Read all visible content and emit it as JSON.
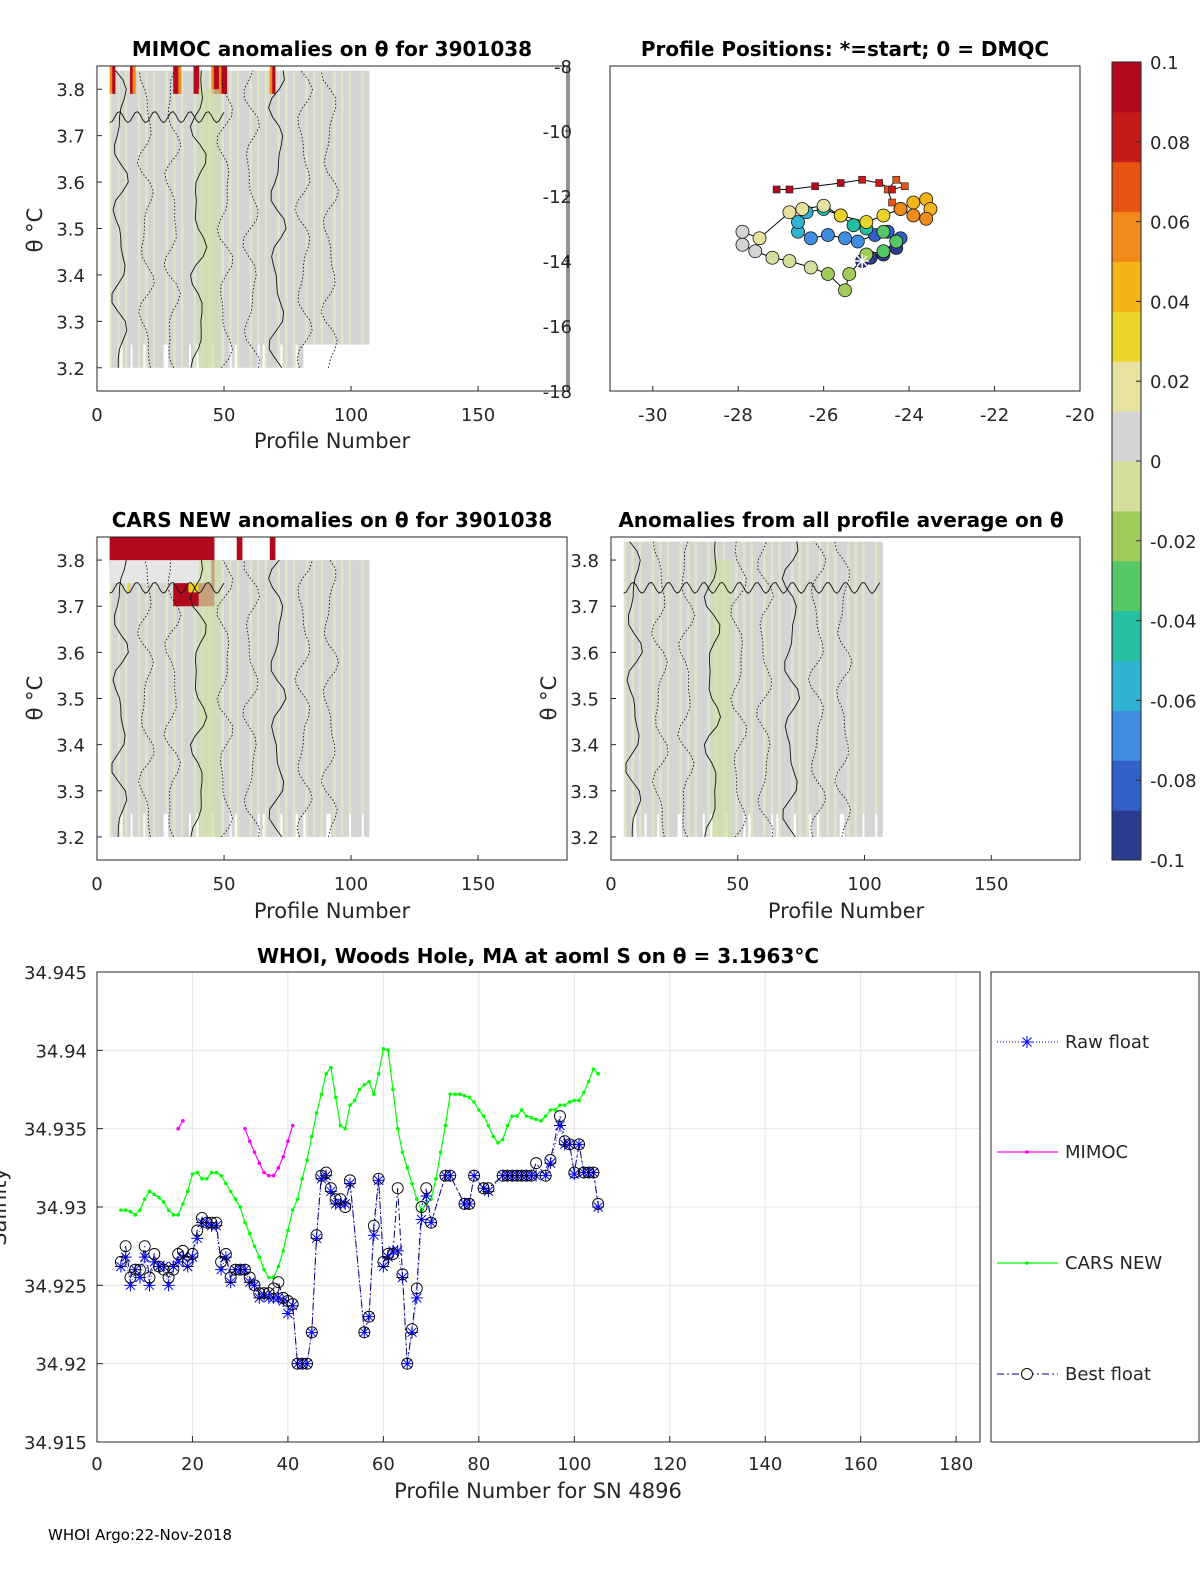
{
  "footer": "WHOI Argo:22-Nov-2018",
  "colorbar": {
    "min": -0.1,
    "max": 0.1,
    "tick_labels": [
      "0.1",
      "0.08",
      "0.06",
      "0.04",
      "0.02",
      "0",
      "-0.02",
      "-0.04",
      "-0.06",
      "-0.08",
      "-0.1"
    ],
    "colors": [
      "#2b3c8e",
      "#3260c9",
      "#3f8de0",
      "#2fb3d1",
      "#25bfa2",
      "#55c765",
      "#a1cc5a",
      "#d5de9a",
      "#d4d4d4",
      "#e8e2a0",
      "#e9d52a",
      "#f4b418",
      "#f08a1c",
      "#e65414",
      "#c61a1a",
      "#b3091d"
    ]
  },
  "chart_data": [
    {
      "id": "mimoc_anomalies",
      "type": "heatmap",
      "title": "MIMOC anomalies on θ  for 3901038",
      "xlabel": "Profile Number",
      "ylabel": "θ °C",
      "xlim": [
        0,
        185
      ],
      "ylim": [
        3.15,
        3.85
      ],
      "x_ticks": [
        "0",
        "50",
        "100",
        "150"
      ],
      "y_ticks": [
        "3.2",
        "3.3",
        "3.4",
        "3.5",
        "3.6",
        "3.7",
        "3.8"
      ],
      "profile_range": [
        5,
        106
      ],
      "theta_range": [
        3.2,
        3.84
      ],
      "dominant_anomaly": 0.0,
      "high_anomaly_profiles": [
        5,
        6,
        13,
        14,
        30,
        31,
        32,
        38,
        39,
        45,
        46,
        47,
        48,
        49,
        50,
        68,
        69
      ]
    },
    {
      "id": "profile_positions",
      "type": "scatter",
      "title": "Profile Positions: *=start; 0 = DMQC",
      "xlabel": "",
      "ylabel": "",
      "xlim": [
        -31,
        -20
      ],
      "ylim": [
        -18,
        -8
      ],
      "x_ticks": [
        "-30",
        "-28",
        "-26",
        "-24",
        "-22",
        "-20"
      ],
      "y_ticks": [
        "-8",
        "-10",
        "-12",
        "-14",
        "-16",
        "-18"
      ],
      "start": [
        -25.1,
        -14.0
      ],
      "track": [
        [
          -25.1,
          -14.0
        ],
        [
          -24.9,
          -13.9
        ],
        [
          -24.6,
          -13.8
        ],
        [
          -24.3,
          -13.6
        ],
        [
          -24.2,
          -13.3
        ],
        [
          -24.5,
          -13.1
        ],
        [
          -24.8,
          -13.2
        ],
        [
          -25.2,
          -13.4
        ],
        [
          -25.5,
          -13.3
        ],
        [
          -25.9,
          -13.2
        ],
        [
          -26.3,
          -13.3
        ],
        [
          -26.6,
          -13.1
        ],
        [
          -26.6,
          -12.8
        ],
        [
          -26.4,
          -12.5
        ],
        [
          -26.0,
          -12.4
        ],
        [
          -25.6,
          -12.6
        ],
        [
          -25.3,
          -12.9
        ],
        [
          -25.0,
          -13.0
        ],
        [
          -24.6,
          -13.1
        ],
        [
          -24.3,
          -13.4
        ],
        [
          -24.6,
          -13.7
        ],
        [
          -25.0,
          -13.8
        ],
        [
          -25.4,
          -14.4
        ],
        [
          -25.5,
          -14.9
        ],
        [
          -25.9,
          -14.4
        ],
        [
          -26.3,
          -14.2
        ],
        [
          -26.8,
          -14.0
        ],
        [
          -27.2,
          -13.9
        ],
        [
          -27.6,
          -13.7
        ],
        [
          -27.9,
          -13.5
        ],
        [
          -27.9,
          -13.1
        ],
        [
          -27.5,
          -13.3
        ],
        [
          -26.8,
          -12.5
        ],
        [
          -26.5,
          -12.4
        ],
        [
          -26.0,
          -12.3
        ],
        [
          -25.6,
          -12.6
        ],
        [
          -25.0,
          -12.8
        ],
        [
          -24.6,
          -12.6
        ],
        [
          -24.2,
          -12.4
        ],
        [
          -23.9,
          -12.2
        ],
        [
          -23.6,
          -12.1
        ],
        [
          -23.5,
          -12.4
        ],
        [
          -23.6,
          -12.7
        ],
        [
          -23.9,
          -12.6
        ],
        [
          -24.2,
          -12.4
        ],
        [
          -24.4,
          -12.2
        ],
        [
          -24.5,
          -11.8
        ],
        [
          -24.3,
          -11.5
        ],
        [
          -24.1,
          -11.7
        ],
        [
          -24.4,
          -11.8
        ],
        [
          -24.7,
          -11.6
        ],
        [
          -25.1,
          -11.5
        ],
        [
          -25.6,
          -11.6
        ],
        [
          -26.2,
          -11.7
        ],
        [
          -26.8,
          -11.8
        ],
        [
          -27.1,
          -11.8
        ]
      ]
    },
    {
      "id": "cars_anomalies",
      "type": "heatmap",
      "title": "CARS NEW anomalies on θ for 3901038",
      "xlabel": "Profile Number",
      "ylabel": "θ °C",
      "xlim": [
        0,
        185
      ],
      "ylim": [
        3.15,
        3.85
      ],
      "x_ticks": [
        "0",
        "50",
        "100",
        "150"
      ],
      "y_ticks": [
        "3.2",
        "3.3",
        "3.4",
        "3.5",
        "3.6",
        "3.7",
        "3.8"
      ],
      "profile_range": [
        5,
        106
      ],
      "theta_range": [
        3.2,
        3.8
      ],
      "dominant_anomaly": 0.0,
      "high_anomaly_profiles": [
        5,
        6,
        7,
        8,
        9,
        10,
        11,
        12,
        13,
        14,
        15,
        16,
        17,
        18,
        19,
        20,
        21,
        22,
        23,
        24,
        25,
        26,
        27,
        28,
        29,
        30,
        31,
        32,
        33,
        34,
        35,
        36,
        37,
        38,
        39,
        40,
        41,
        42,
        43,
        44,
        45,
        55,
        56,
        68,
        69
      ]
    },
    {
      "id": "all_profile_average_anomalies",
      "type": "heatmap",
      "title": "Anomalies from all profile average on θ",
      "xlabel": "Profile Number",
      "ylabel": "θ °C",
      "xlim": [
        0,
        185
      ],
      "ylim": [
        3.15,
        3.85
      ],
      "x_ticks": [
        "0",
        "50",
        "100",
        "150"
      ],
      "y_ticks": [
        "3.2",
        "3.3",
        "3.4",
        "3.5",
        "3.6",
        "3.7",
        "3.8"
      ],
      "profile_range": [
        5,
        106
      ],
      "theta_range": [
        3.2,
        3.84
      ],
      "dominant_anomaly": 0.0
    },
    {
      "id": "salinity_timeseries",
      "type": "line",
      "title": "WHOI, Woods Hole, MA at aoml S on θ = 3.1963°C",
      "xlabel": "Profile Number for SN 4896",
      "ylabel": "Salinity",
      "xlim": [
        0,
        185
      ],
      "ylim": [
        34.915,
        34.945
      ],
      "x_ticks": [
        "0",
        "20",
        "40",
        "60",
        "80",
        "100",
        "120",
        "140",
        "160",
        "180"
      ],
      "y_ticks": [
        "34.915",
        "34.92",
        "34.925",
        "34.93",
        "34.935",
        "34.94",
        "34.945"
      ],
      "legend": [
        "Raw float",
        "MIMOC",
        "CARS NEW",
        "Best float"
      ],
      "series": [
        {
          "name": "CARS NEW",
          "color": "#00ff00",
          "x": [
            5,
            6,
            7,
            8,
            9,
            10,
            11,
            12,
            13,
            14,
            15,
            16,
            17,
            18,
            19,
            20,
            21,
            22,
            23,
            24,
            25,
            26,
            27,
            28,
            29,
            30,
            31,
            32,
            33,
            34,
            35,
            36,
            37,
            38,
            39,
            40,
            41,
            42,
            43,
            44,
            45,
            46,
            47,
            48,
            49,
            50,
            51,
            52,
            53,
            54,
            55,
            56,
            57,
            58,
            59,
            60,
            61,
            62,
            63,
            64,
            65,
            66,
            67,
            68,
            69,
            70,
            71,
            72,
            73,
            74,
            75,
            76,
            77,
            78,
            79,
            80,
            81,
            82,
            83,
            84,
            85,
            86,
            87,
            88,
            89,
            90,
            91,
            92,
            93,
            94,
            95,
            96,
            97,
            98,
            99,
            100,
            101,
            102,
            103,
            104,
            105
          ],
          "y": [
            34.9298,
            34.9298,
            34.9297,
            34.9295,
            34.9298,
            34.9305,
            34.931,
            34.9308,
            34.9306,
            34.9303,
            34.9298,
            34.9295,
            34.9295,
            34.9302,
            34.931,
            34.9321,
            34.9322,
            34.9318,
            34.9318,
            34.9322,
            34.9322,
            34.932,
            34.9315,
            34.931,
            34.9305,
            34.93,
            34.929,
            34.9283,
            34.9275,
            34.9268,
            34.926,
            34.9255,
            34.9255,
            34.9262,
            34.9272,
            34.9285,
            34.9298,
            34.9305,
            34.9318,
            34.933,
            34.9345,
            34.936,
            34.9372,
            34.9385,
            34.9389,
            34.937,
            34.9352,
            34.935,
            34.9365,
            34.9368,
            34.9375,
            34.9378,
            34.938,
            34.9372,
            34.9385,
            34.9401,
            34.94,
            34.9375,
            34.935,
            34.9335,
            34.9325,
            34.9315,
            34.9305,
            34.9298,
            34.9302,
            34.9305,
            34.9318,
            34.9335,
            34.9352,
            34.9372,
            34.9372,
            34.9372,
            34.9371,
            34.937,
            34.9367,
            34.9362,
            34.9358,
            34.9352,
            34.9345,
            34.9341,
            34.9343,
            34.9352,
            34.9358,
            34.9358,
            34.9362,
            34.9358,
            34.9357,
            34.9356,
            34.9355,
            34.9358,
            34.9362,
            34.9362,
            34.9365,
            34.9365,
            34.9367,
            34.9368,
            34.9368,
            34.9373,
            34.938,
            34.9388,
            34.9385
          ]
        },
        {
          "name": "MIMOC",
          "color": "#ff00ff",
          "segments": [
            {
              "x": [
                17,
                18
              ],
              "y": [
                34.935,
                34.9355
              ]
            },
            {
              "x": [
                31,
                32,
                33,
                34,
                35,
                36,
                37,
                38,
                39,
                40,
                41
              ],
              "y": [
                34.935,
                34.9342,
                34.9335,
                34.9328,
                34.9322,
                34.932,
                34.932,
                34.9325,
                34.9332,
                34.9342,
                34.9352
              ]
            }
          ]
        },
        {
          "name": "Raw float",
          "color": "#0000ff",
          "x": [
            5,
            6,
            7,
            8,
            9,
            10,
            11,
            12,
            13,
            14,
            15,
            16,
            17,
            18,
            19,
            20,
            21,
            22,
            23,
            24,
            25,
            26,
            27,
            28,
            29,
            30,
            31,
            32,
            33,
            34,
            35,
            36,
            37,
            38,
            39,
            40,
            41,
            42,
            43,
            44,
            45,
            46,
            47,
            48,
            49,
            50,
            51,
            52,
            53,
            56,
            57,
            58,
            59,
            60,
            61,
            62,
            63,
            64,
            65,
            66,
            67,
            68,
            69,
            70,
            73,
            74,
            77,
            78,
            79,
            81,
            82,
            85,
            86,
            87,
            88,
            89,
            90,
            91,
            92,
            94,
            95,
            97,
            98,
            99,
            100,
            101,
            102,
            103,
            104,
            105
          ],
          "y": [
            34.9262,
            34.9268,
            34.925,
            34.926,
            34.9255,
            34.9268,
            34.925,
            34.9265,
            34.9262,
            34.9262,
            34.925,
            34.9262,
            34.9265,
            34.9268,
            34.9262,
            34.9268,
            34.928,
            34.929,
            34.929,
            34.9288,
            34.9288,
            34.926,
            34.9268,
            34.9252,
            34.926,
            34.926,
            34.926,
            34.9252,
            34.925,
            34.9242,
            34.9244,
            34.9242,
            34.9242,
            34.9242,
            34.924,
            34.9232,
            34.9237,
            34.92,
            34.92,
            34.92,
            34.922,
            34.928,
            34.9318,
            34.932,
            34.931,
            34.9302,
            34.9302,
            34.9302,
            34.9315,
            34.922,
            34.923,
            34.9282,
            34.9317,
            34.9262,
            34.9268,
            34.9272,
            34.9272,
            34.9255,
            34.92,
            34.922,
            34.9242,
            34.9292,
            34.9307,
            34.929,
            34.932,
            34.932,
            34.9302,
            34.9302,
            34.932,
            34.9312,
            34.931,
            34.932,
            34.932,
            34.932,
            34.932,
            34.932,
            34.932,
            34.932,
            34.932,
            34.932,
            34.9328,
            34.9352,
            34.934,
            34.934,
            34.9321,
            34.934,
            34.9322,
            34.9322,
            34.9322,
            34.93
          ]
        },
        {
          "name": "Best float",
          "color": "#000080",
          "x": [
            5,
            6,
            7,
            8,
            9,
            10,
            11,
            12,
            13,
            14,
            15,
            16,
            17,
            18,
            19,
            20,
            21,
            22,
            23,
            24,
            25,
            26,
            27,
            28,
            29,
            30,
            31,
            32,
            33,
            34,
            35,
            36,
            37,
            38,
            39,
            40,
            41,
            42,
            43,
            44,
            45,
            46,
            47,
            48,
            49,
            50,
            51,
            52,
            53,
            56,
            57,
            58,
            59,
            60,
            61,
            62,
            63,
            64,
            65,
            66,
            67,
            68,
            69,
            70,
            73,
            74,
            77,
            78,
            79,
            81,
            82,
            85,
            86,
            87,
            88,
            89,
            90,
            91,
            92,
            94,
            95,
            97,
            98,
            99,
            100,
            101,
            102,
            103,
            104,
            105
          ],
          "y": [
            34.9265,
            34.9275,
            34.9255,
            34.926,
            34.926,
            34.9275,
            34.9255,
            34.927,
            34.9262,
            34.926,
            34.9255,
            34.926,
            34.927,
            34.9272,
            34.9265,
            34.927,
            34.9285,
            34.9293,
            34.929,
            34.929,
            34.929,
            34.9265,
            34.927,
            34.9255,
            34.926,
            34.926,
            34.926,
            34.9255,
            34.925,
            34.9245,
            34.9245,
            34.9245,
            34.9248,
            34.9252,
            34.9242,
            34.924,
            34.9238,
            34.92,
            34.92,
            34.92,
            34.922,
            34.9282,
            34.932,
            34.9322,
            34.9312,
            34.9305,
            34.9305,
            34.93,
            34.9317,
            34.922,
            34.923,
            34.9288,
            34.9318,
            34.9265,
            34.927,
            34.927,
            34.9312,
            34.9257,
            34.92,
            34.9222,
            34.9248,
            34.93,
            34.9312,
            34.929,
            34.932,
            34.932,
            34.9302,
            34.9302,
            34.932,
            34.9312,
            34.9312,
            34.932,
            34.932,
            34.932,
            34.932,
            34.932,
            34.932,
            34.932,
            34.9328,
            34.932,
            34.933,
            34.9358,
            34.9342,
            34.934,
            34.9322,
            34.934,
            34.9322,
            34.9322,
            34.9322,
            34.9302
          ]
        }
      ]
    }
  ]
}
